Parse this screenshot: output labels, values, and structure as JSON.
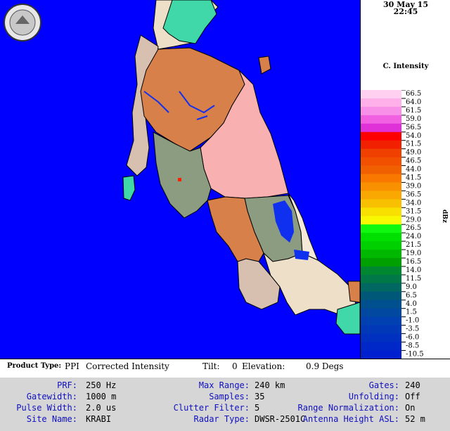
{
  "header": {
    "date": "30 May 15",
    "time": "22:45"
  },
  "legend": {
    "title": "C. Intensity",
    "unit": "dBz",
    "ticks": [
      "66.5",
      "64.0",
      "61.5",
      "59.0",
      "56.5",
      "54.0",
      "51.5",
      "49.0",
      "46.5",
      "44.0",
      "41.5",
      "39.0",
      "36.5",
      "34.0",
      "31.5",
      "29.0",
      "26.5",
      "24.0",
      "21.5",
      "19.0",
      "16.5",
      "14.0",
      "11.5",
      "9.0",
      "6.5",
      "4.0",
      "1.5",
      "-1.0",
      "-3.5",
      "-6.0",
      "-8.5",
      "-10.5"
    ],
    "colors": [
      "#ffd0f0",
      "#ffb0e8",
      "#f890e8",
      "#f060e0",
      "#e030d8",
      "#ff0000",
      "#f02000",
      "#f04000",
      "#f05000",
      "#f06000",
      "#f87800",
      "#f89000",
      "#f8a800",
      "#f8c000",
      "#f8e000",
      "#f8f800",
      "#10f810",
      "#00e000",
      "#00d000",
      "#00b800",
      "#00a000",
      "#008830",
      "#007848",
      "#006860",
      "#005878",
      "#005090",
      "#0048a0",
      "#0040b0",
      "#0038b8",
      "#0030c0",
      "#0028c8",
      "#0020d0"
    ]
  },
  "product": {
    "type_label": "Product Type:",
    "type_value": "PPI",
    "name": "Corrected Intensity",
    "tilt_label": "Tilt:",
    "tilt_value": "0",
    "elev_label": "Elevation:",
    "elev_value": "0.9 Degs"
  },
  "params": {
    "prf_label": "PRF:",
    "prf_value": "250 Hz",
    "maxrange_label": "Max Range:",
    "maxrange_value": "240 km",
    "gates_label": "Gates:",
    "gates_value": "240",
    "gatewidth_label": "Gatewidth:",
    "gatewidth_value": "1000 m",
    "samples_label": "Samples:",
    "samples_value": "35",
    "unfolding_label": "Unfolding:",
    "unfolding_value": "Off",
    "pulsewidth_label": "Pulse Width:",
    "pulsewidth_value": "2.0 us",
    "clutter_label": "Clutter Filter:",
    "clutter_value": "5",
    "rangenorm_label": "Range Normalization:",
    "rangenorm_value": "On",
    "site_label": "Site Name:",
    "site_value": "KRABI",
    "radartype_label": "Radar Type:",
    "radartype_value": "DWSR-2501C",
    "antenna_label": "Antenna Height ASL:",
    "antenna_value": "52 m"
  },
  "colors": {
    "sea": "#0000ff",
    "info_bg": "#d6d6d6",
    "label_blue": "#1010c0"
  }
}
